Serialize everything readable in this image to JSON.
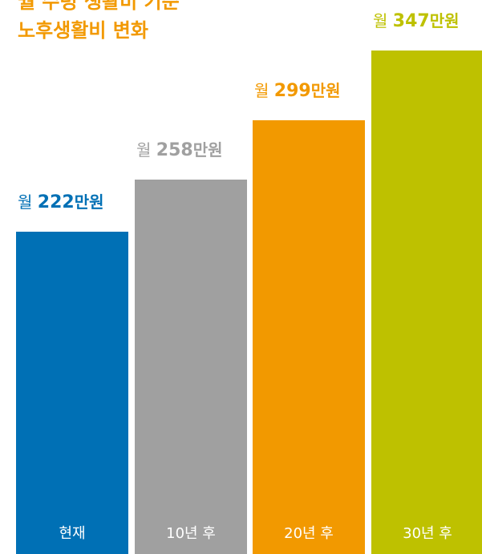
{
  "title_lines": [
    "월 수령 생활비 기준",
    "노후생활비 변화"
  ],
  "value_prefix": "월",
  "value_unit": "만원",
  "colors": {
    "title": "#f29900",
    "tick_label_text": "#ffffff"
  },
  "chart_data": {
    "type": "bar",
    "title": "월 수령 생활비 기준 노후생활비 변화",
    "categories": [
      "현재",
      "10년 후",
      "20년 후",
      "30년 후"
    ],
    "series": [
      {
        "values": [
          222,
          258,
          299,
          347
        ],
        "colors": [
          "#0070b5",
          "#a0a0a0",
          "#f29900",
          "#bec100"
        ]
      }
    ],
    "data_labels": [
      "월 222만원",
      "월 258만원",
      "월 299만원",
      "월 347만원"
    ],
    "xlabel": "",
    "ylabel": "",
    "ylim": [
      0,
      400
    ],
    "grid": false,
    "legend": "none"
  }
}
